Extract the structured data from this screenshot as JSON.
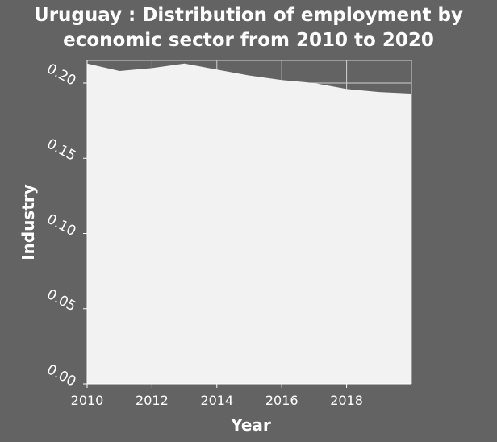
{
  "chart_data": {
    "type": "area",
    "title_line1": "Uruguay : Distribution of employment by",
    "title_line2": "economic sector from 2010 to 2020",
    "xlabel": "Year",
    "ylabel": "Industry",
    "xlim": [
      2010,
      2020
    ],
    "ylim": [
      0,
      0.215
    ],
    "x_ticks": [
      2010,
      2012,
      2014,
      2016,
      2018
    ],
    "x_tick_labels": [
      "2010",
      "2012",
      "2014",
      "2016",
      "2018"
    ],
    "y_ticks": [
      0,
      0.05,
      0.1,
      0.15,
      0.2
    ],
    "y_tick_labels": [
      "0.00",
      "0.05",
      "0.10",
      "0.15",
      "0.20"
    ],
    "grid": true,
    "x": [
      2010,
      2011,
      2012,
      2013,
      2014,
      2015,
      2016,
      2017,
      2018,
      2019,
      2020
    ],
    "values": [
      0.213,
      0.208,
      0.21,
      0.213,
      0.209,
      0.205,
      0.202,
      0.2,
      0.196,
      0.194,
      0.193
    ],
    "colors": {
      "background": "#636363",
      "fill": "#f2f2f2",
      "grid": "#d0d0d0",
      "text": "#ffffff"
    }
  }
}
